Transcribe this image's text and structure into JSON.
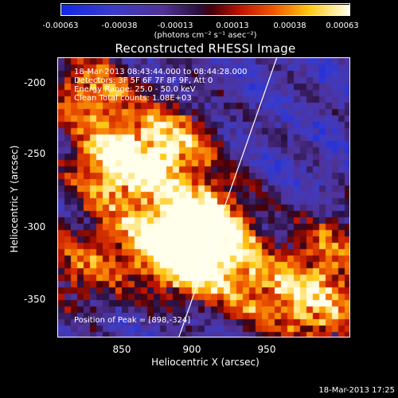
{
  "chart_data": {
    "type": "heatmap",
    "title": "Reconstructed RHESSI Image",
    "xlabel": "Heliocentric X (arcsec)",
    "ylabel": "Heliocentric Y (arcsec)",
    "xlim": [
      810,
      995
    ],
    "ylim": [
      -377,
      -192
    ],
    "xticks": [
      850,
      900,
      950
    ],
    "yticks": [
      -200,
      -250,
      -300,
      -350
    ],
    "colorbar": {
      "ticks": [
        "-0.00063",
        "-0.00038",
        "-0.00013",
        "0.00013",
        "0.00038",
        "0.00063"
      ],
      "units_label": "(photons cm⁻² s⁻¹ asec⁻²)",
      "range": [
        -0.00063,
        0.00063
      ]
    },
    "annotations": [
      "18-Mar-2013 08:43:44.000 to 08:44:28.000",
      "Detectors: 3F 5F 6F 7F 8F 9F, Att 0",
      "Energy Range: 25.0 - 50.0 keV",
      "Clean    Total counts: 1.08E+03"
    ],
    "peak_label": "Position of Peak = [898,-324]",
    "peak": {
      "x": 898,
      "y": -324
    },
    "hotspots": [
      {
        "x": 845,
        "y": -265,
        "value": 0.00055
      },
      {
        "x": 832,
        "y": -215,
        "value": 0.00035
      },
      {
        "x": 880,
        "y": -250,
        "value": 0.00045
      },
      {
        "x": 898,
        "y": -324,
        "value": 0.00063
      },
      {
        "x": 905,
        "y": -300,
        "value": 0.00048
      },
      {
        "x": 870,
        "y": -310,
        "value": 0.0003
      },
      {
        "x": 940,
        "y": -345,
        "value": 0.00025
      },
      {
        "x": 975,
        "y": -360,
        "value": 0.00028
      },
      {
        "x": 985,
        "y": -320,
        "value": 0.00018
      },
      {
        "x": 825,
        "y": -330,
        "value": 0.0002
      }
    ],
    "limb_line": {
      "x1": 886,
      "y1": -377,
      "x2": 948,
      "y2": -192
    }
  },
  "timestamp": "18-Mar-2013 17:25"
}
